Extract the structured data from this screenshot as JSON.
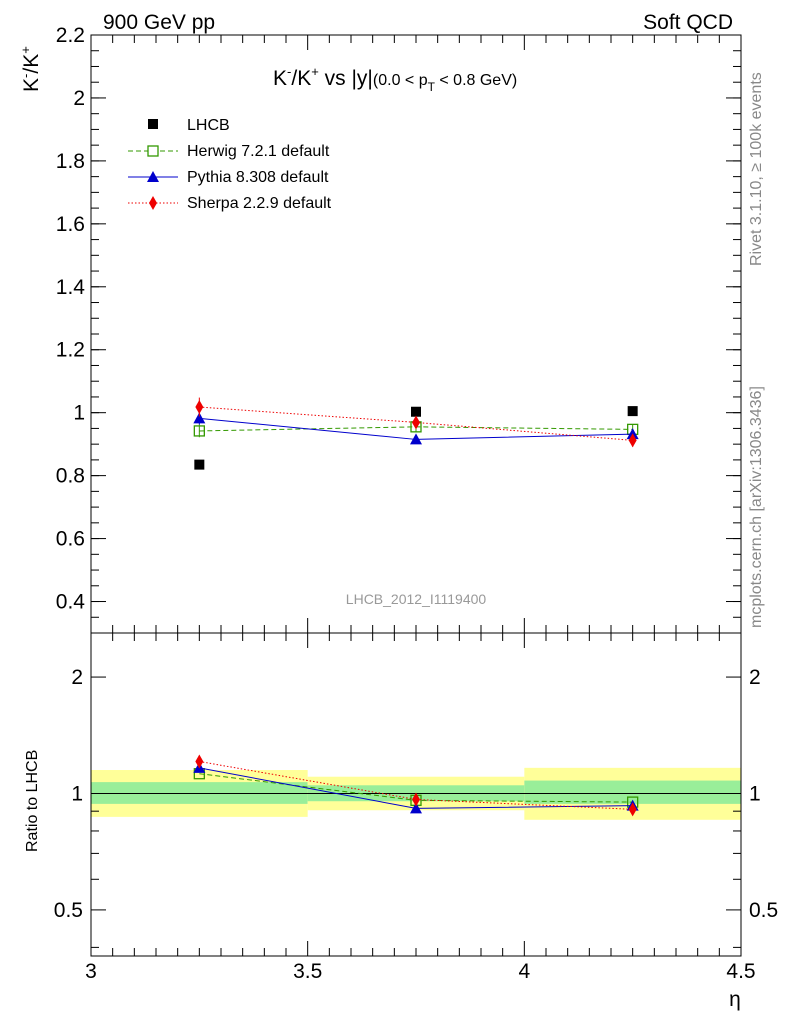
{
  "header": {
    "left": "900 GeV pp",
    "right": "Soft QCD"
  },
  "side_labels": {
    "rivet": "Rivet 3.1.10, ≥ 100k events",
    "mcplots": "mcplots.cern.ch [arXiv:1306.3436]"
  },
  "analysis_id": "LHCB_2012_I1119400",
  "chart_data": [
    {
      "type": "scatter",
      "title": "K⁻/K⁺ vs |y|(0.0 < p_T < 0.8 GeV)",
      "title_main": "K",
      "title_vs": "vs |y|",
      "title_range": "(0.0 < p",
      "title_range_sub": "T",
      "title_range_end": " < 0.8 GeV)",
      "ylabel": "K⁻/K⁺",
      "xlabel": "η",
      "xlim": [
        3.0,
        4.5
      ],
      "ylim": [
        0.3,
        2.2
      ],
      "x_ticks": [
        "3",
        "3.5",
        "4",
        "4.5"
      ],
      "y_ticks": [
        "0.4",
        "0.6",
        "0.8",
        "1",
        "1.2",
        "1.4",
        "1.6",
        "1.8",
        "2",
        "2.2"
      ],
      "legend_position": "top-left",
      "series": [
        {
          "name": "LHCB",
          "color": "#000000",
          "marker": "square-filled",
          "line": "none",
          "x": [
            3.25,
            3.75,
            4.25
          ],
          "y": [
            0.835,
            1.003,
            1.005
          ]
        },
        {
          "name": "Herwig 7.2.1 default",
          "color": "#339900",
          "marker": "square-open",
          "line": "dashed",
          "x": [
            3.25,
            3.75,
            4.25
          ],
          "y": [
            0.942,
            0.955,
            0.947
          ],
          "err": [
            0.02,
            0.015,
            0.015
          ]
        },
        {
          "name": "Pythia 8.308 default",
          "color": "#0000cc",
          "marker": "triangle",
          "line": "solid",
          "x": [
            3.25,
            3.75,
            4.25
          ],
          "y": [
            0.982,
            0.915,
            0.932
          ],
          "err": [
            0.02,
            0.012,
            0.015
          ]
        },
        {
          "name": "Sherpa 2.2.9 default",
          "color": "#ee0000",
          "marker": "diamond",
          "line": "dotted",
          "x": [
            3.25,
            3.75,
            4.25
          ],
          "y": [
            1.018,
            0.969,
            0.912
          ],
          "err": [
            0.03,
            0.015,
            0.02
          ]
        }
      ]
    },
    {
      "type": "scatter",
      "ylabel": "Ratio to LHCB",
      "xlabel": "η",
      "xlim": [
        3.0,
        4.5
      ],
      "ylim": [
        0.38,
        2.6
      ],
      "y_scale": "log",
      "y_ticks": [
        "0.5",
        "1",
        "2"
      ],
      "reference_bands": [
        {
          "x": [
            3.0,
            3.5
          ],
          "inner": [
            0.94,
            1.07
          ],
          "outer": [
            0.87,
            1.15
          ]
        },
        {
          "x": [
            3.5,
            4.0
          ],
          "inner": [
            0.955,
            1.05
          ],
          "outer": [
            0.905,
            1.105
          ]
        },
        {
          "x": [
            4.0,
            4.5
          ],
          "inner": [
            0.94,
            1.08
          ],
          "outer": [
            0.855,
            1.165
          ]
        }
      ],
      "band_colors": {
        "inner": "#99ee99",
        "outer": "#ffff99"
      },
      "series": [
        {
          "name": "Herwig 7.2.1 default",
          "color": "#339900",
          "marker": "square-open",
          "line": "dashed",
          "x": [
            3.25,
            3.75,
            4.25
          ],
          "y": [
            1.125,
            0.96,
            0.95
          ]
        },
        {
          "name": "Pythia 8.308 default",
          "color": "#0000cc",
          "marker": "triangle",
          "line": "solid",
          "x": [
            3.25,
            3.75,
            4.25
          ],
          "y": [
            1.165,
            0.915,
            0.93
          ]
        },
        {
          "name": "Sherpa 2.2.9 default",
          "color": "#ee0000",
          "marker": "diamond",
          "line": "dotted",
          "x": [
            3.25,
            3.75,
            4.25
          ],
          "y": [
            1.21,
            0.965,
            0.91
          ]
        }
      ]
    }
  ]
}
